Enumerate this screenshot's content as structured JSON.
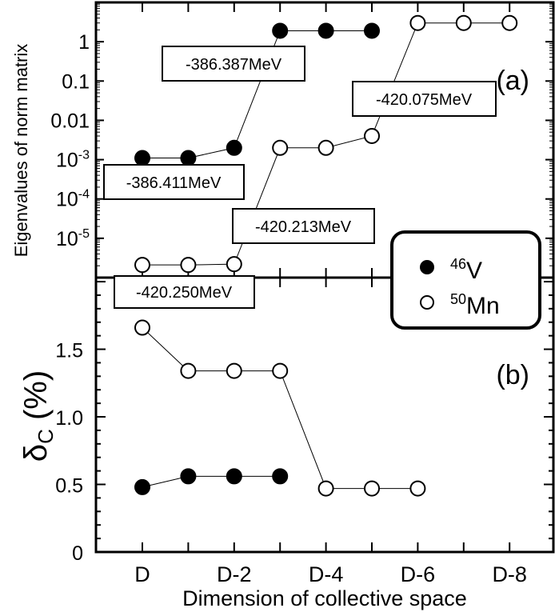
{
  "chart_data": [
    {
      "type": "scatter",
      "panel_label": "(a)",
      "ylabel": "Eigenvalues of norm matrix",
      "yscale": "log",
      "ylim": [
        1e-06,
        10
      ],
      "ytick_labels": [
        {
          "value": 1,
          "label": "1"
        },
        {
          "value": 0.1,
          "label": "0.1"
        },
        {
          "value": 0.01,
          "label": "0.01"
        },
        {
          "value": 0.001,
          "base": "10",
          "exp": "-3"
        },
        {
          "value": 0.0001,
          "base": "10",
          "exp": "-4"
        },
        {
          "value": 1e-05,
          "base": "10",
          "exp": "-5"
        }
      ],
      "series": [
        {
          "name": "46V",
          "marker": "filled",
          "x": [
            0,
            1,
            2,
            3,
            4,
            5
          ],
          "values": [
            0.0011,
            0.0011,
            0.002,
            1.9,
            1.9,
            1.9
          ]
        },
        {
          "name": "50Mn",
          "marker": "open",
          "x": [
            0,
            1,
            2,
            3,
            4,
            5,
            6,
            7,
            8
          ],
          "values": [
            2.1e-06,
            2.1e-06,
            2.2e-06,
            0.002,
            0.002,
            0.004,
            3,
            3,
            3
          ]
        }
      ],
      "annotations": [
        "-386.387MeV",
        "-386.411MeV",
        "-420.075MeV",
        "-420.213MeV",
        "-420.250MeV"
      ]
    },
    {
      "type": "scatter",
      "panel_label": "(b)",
      "ylabel_main": "δ",
      "ylabel_sub": "C",
      "ylabel_rest": " (%)",
      "ylim": [
        0,
        2.03
      ],
      "ytick_labels": [
        "0",
        "0.5",
        "1.0",
        "1.5"
      ],
      "ytick_values": [
        0,
        0.5,
        1.0,
        1.5
      ],
      "series": [
        {
          "name": "46V",
          "marker": "filled",
          "x": [
            0,
            1,
            2,
            3
          ],
          "values": [
            0.48,
            0.56,
            0.56,
            0.56
          ]
        },
        {
          "name": "50Mn",
          "marker": "open",
          "x": [
            0,
            1,
            2,
            3,
            4,
            5,
            6
          ],
          "values": [
            1.66,
            1.34,
            1.34,
            1.34,
            0.47,
            0.47,
            0.47
          ]
        }
      ],
      "xlabel": "Dimension of collective space",
      "xtick_labels": [
        {
          "x": 0,
          "label": "D"
        },
        {
          "x": 2,
          "label": "D-2"
        },
        {
          "x": 4,
          "label": "D-4"
        },
        {
          "x": 6,
          "label": "D-6"
        },
        {
          "x": 8,
          "label": "D-8"
        }
      ],
      "xlim": [
        -1,
        9
      ]
    }
  ],
  "legend": [
    {
      "mass": "46",
      "element": "V",
      "marker": "filled"
    },
    {
      "mass": "50",
      "element": "Mn",
      "marker": "open"
    }
  ]
}
